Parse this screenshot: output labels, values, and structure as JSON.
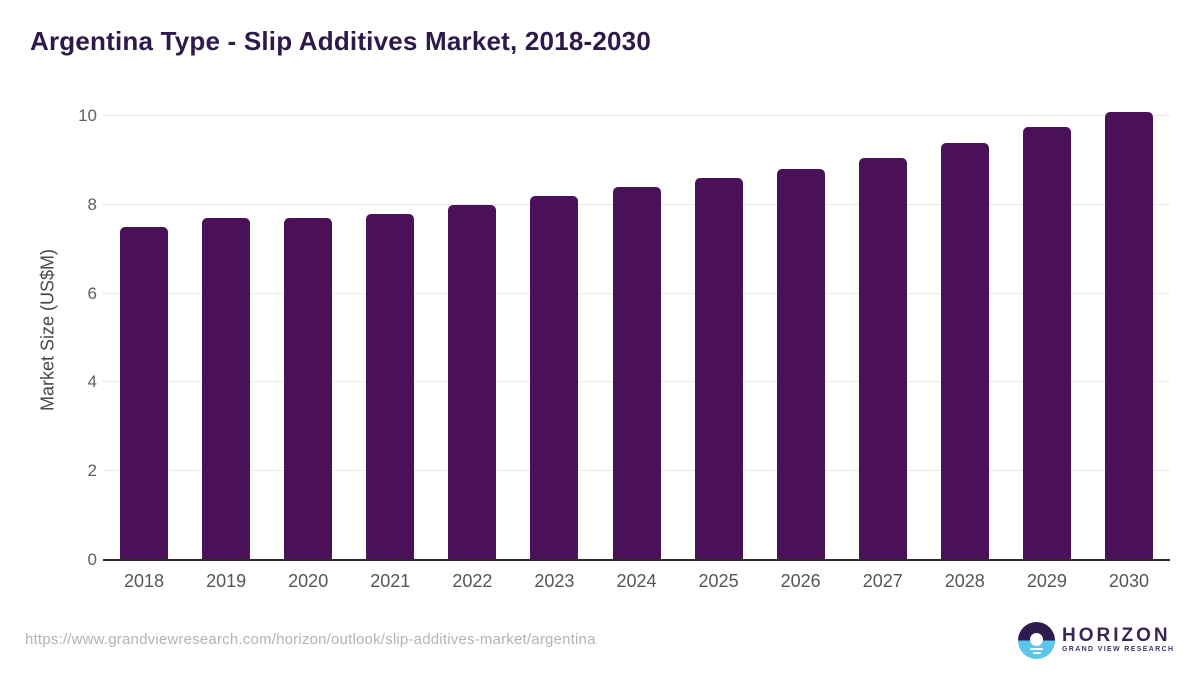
{
  "title": "Argentina Type - Slip Additives Market, 2018-2030",
  "chart_data": {
    "type": "bar",
    "title": "Argentina Type - Slip Additives Market, 2018-2030",
    "categories": [
      "2018",
      "2019",
      "2020",
      "2021",
      "2022",
      "2023",
      "2024",
      "2025",
      "2026",
      "2027",
      "2028",
      "2029",
      "2030"
    ],
    "values": [
      7.5,
      7.7,
      7.7,
      7.8,
      8.0,
      8.2,
      8.4,
      8.6,
      8.8,
      9.05,
      9.4,
      9.75,
      10.1
    ],
    "xlabel": "",
    "ylabel": "Market Size (US$M)",
    "ylim": [
      0,
      10.35
    ],
    "yticks": [
      0,
      2,
      4,
      6,
      8,
      10
    ],
    "grid": "horizontal-light",
    "legend": "none",
    "bar_color": "#4a1158"
  },
  "colors": {
    "title": "#2e194b",
    "bar": "#4a1158",
    "gridline": "#e9e9e9",
    "axis_line": "#2b2b2b",
    "tick_label": "#5f5f5f",
    "url_text": "#b3b3b3",
    "logo_dark": "#2d1b4e",
    "logo_blue": "#5cc5ec"
  },
  "footer": {
    "source_url": "https://www.grandviewresearch.com/horizon/outlook/slip-additives-market/argentina",
    "logo": {
      "name": "HORIZON",
      "subtitle": "GRAND VIEW RESEARCH"
    }
  }
}
